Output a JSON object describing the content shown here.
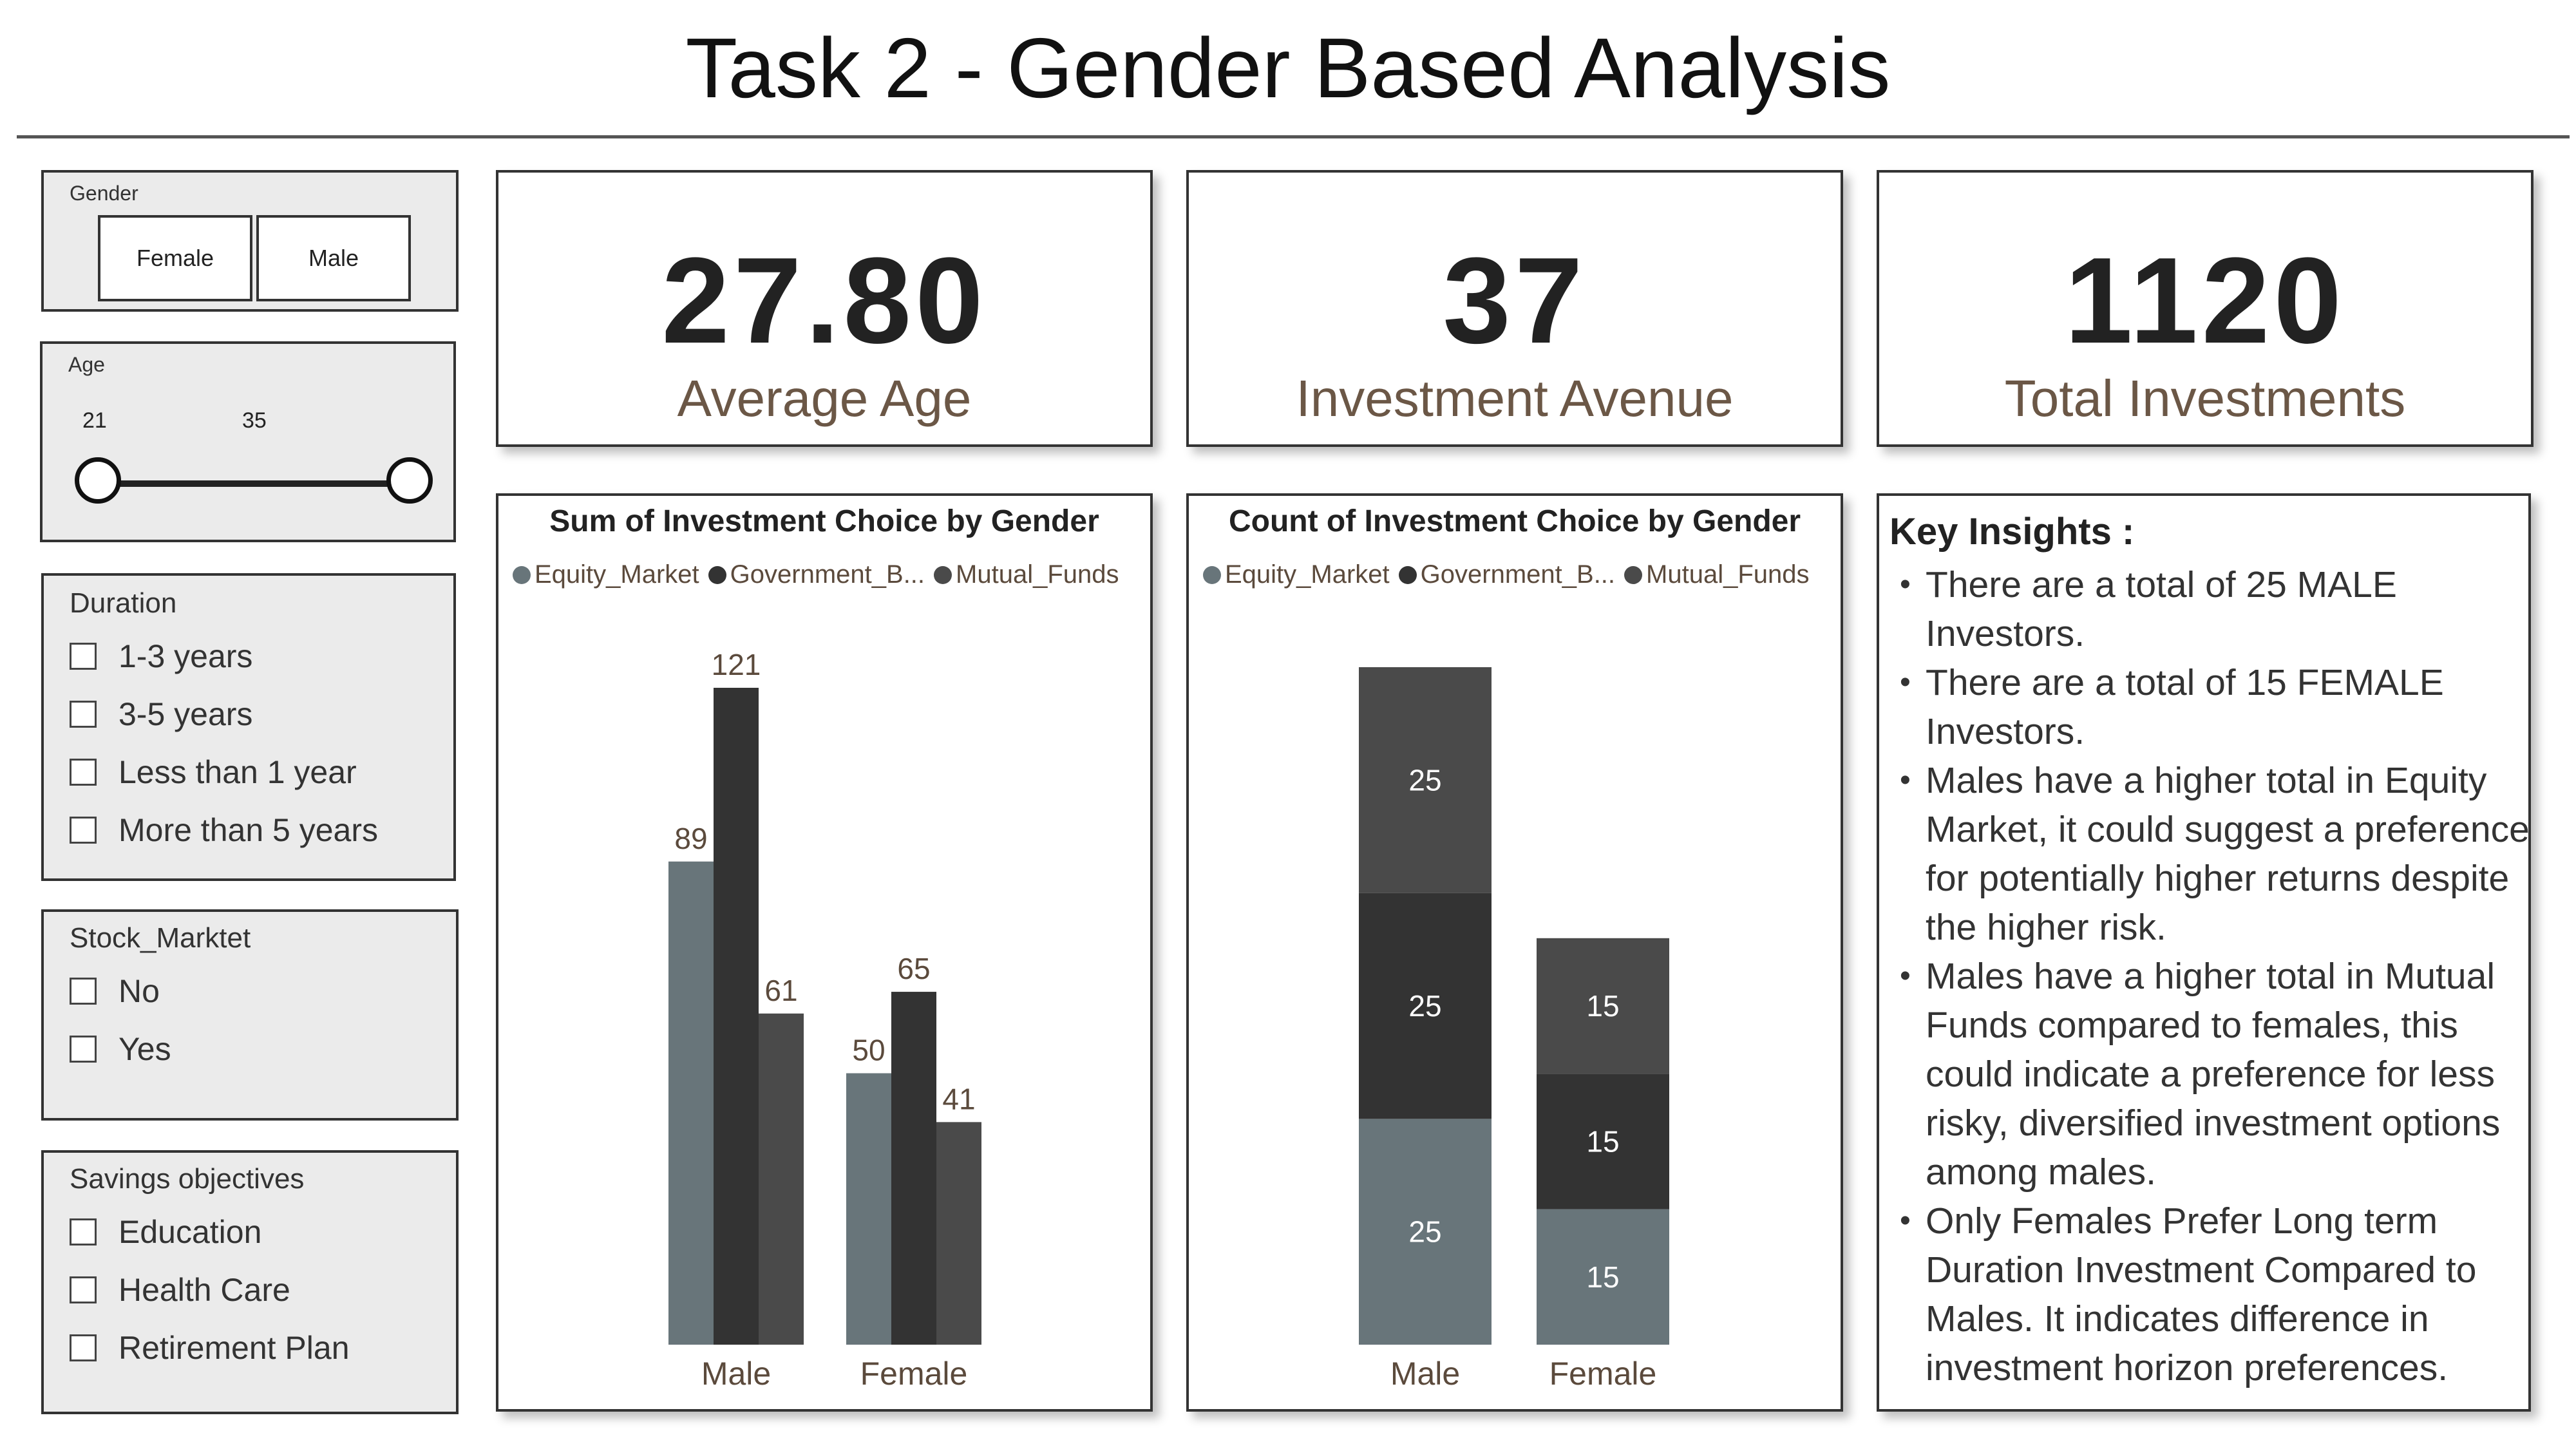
{
  "title": "Task 2 - Gender Based Analysis",
  "filters": {
    "gender": {
      "title": "Gender",
      "options": [
        "Female",
        "Male"
      ]
    },
    "age": {
      "title": "Age",
      "min": "21",
      "max": "35"
    },
    "duration": {
      "title": "Duration",
      "options": [
        "1-3 years",
        "3-5 years",
        "Less than 1 year",
        "More than 5 years"
      ]
    },
    "stock_market": {
      "title": "Stock_Marktet",
      "options": [
        "No",
        "Yes"
      ]
    },
    "savings": {
      "title": "Savings objectives",
      "options": [
        "Education",
        "Health Care",
        "Retirement Plan"
      ]
    }
  },
  "kpis": [
    {
      "value": "27.80",
      "label": "Average Age"
    },
    {
      "value": "37",
      "label": "Investment Avenue"
    },
    {
      "value": "1120",
      "label": "Total Investments"
    }
  ],
  "legend": [
    "Equity_Market",
    "Government_B...",
    "Mutual_Funds"
  ],
  "colors": {
    "equity": "#68757a",
    "government": "#333333",
    "mutual": "#4a4a4a"
  },
  "chart_data": [
    {
      "type": "bar",
      "title": "Sum of Investment Choice by Gender",
      "categories": [
        "Male",
        "Female"
      ],
      "series": [
        {
          "name": "Equity_Market",
          "values": [
            89,
            50
          ]
        },
        {
          "name": "Government_B...",
          "values": [
            121,
            65
          ]
        },
        {
          "name": "Mutual_Funds",
          "values": [
            61,
            41
          ]
        }
      ],
      "ylim": [
        0,
        121
      ],
      "legend_position": "top-left",
      "grid": false
    },
    {
      "type": "bar",
      "stacked": true,
      "title": "Count of Investment Choice by Gender",
      "categories": [
        "Male",
        "Female"
      ],
      "series": [
        {
          "name": "Equity_Market",
          "values": [
            25,
            15
          ]
        },
        {
          "name": "Government_B...",
          "values": [
            25,
            15
          ]
        },
        {
          "name": "Mutual_Funds",
          "values": [
            25,
            15
          ]
        }
      ],
      "ylim": [
        0,
        75
      ],
      "legend_position": "top-left",
      "grid": false
    }
  ],
  "insights": {
    "title": "Key Insights :",
    "items": [
      "There are a total of 25 MALE Investors.",
      "There are a total of 15 FEMALE Investors.",
      "Males have a higher total in Equity Market, it could suggest a preference for potentially higher returns despite the higher risk.",
      "Males have a higher total in Mutual Funds compared to females, this could indicate a preference for less risky, diversified investment options among males.",
      "Only Females Prefer Long term Duration Investment Compared to Males. It indicates difference in investment horizon preferences."
    ]
  }
}
